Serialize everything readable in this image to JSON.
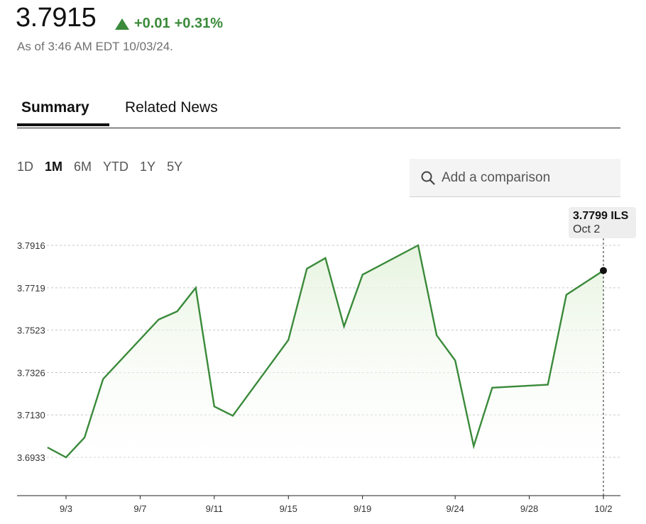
{
  "quote": {
    "price": "3.7915",
    "change": "+0.01",
    "change_pct": "+0.31%",
    "as_of": "As of 3:46 AM EDT 10/03/24."
  },
  "tabs": [
    {
      "label": "Summary",
      "active": true
    },
    {
      "label": "Related News",
      "active": false
    }
  ],
  "ranges": [
    {
      "label": "1D",
      "active": false
    },
    {
      "label": "1M",
      "active": true
    },
    {
      "label": "6M",
      "active": false
    },
    {
      "label": "YTD",
      "active": false
    },
    {
      "label": "1Y",
      "active": false
    },
    {
      "label": "5Y",
      "active": false
    }
  ],
  "comparison": {
    "placeholder": "Add a comparison",
    "icon": "search-icon"
  },
  "tooltip": {
    "value": "3.7799 ILS",
    "date": "Oct 2"
  },
  "colors": {
    "line": "#3a8a3a",
    "positive": "#3a8a3a",
    "fill": "#eef7ea"
  },
  "chart_data": {
    "type": "area",
    "ylim": [
      3.675,
      3.7964
    ],
    "y_ticks": [
      "3.7916",
      "3.7719",
      "3.7523",
      "3.7326",
      "3.7130",
      "3.6933"
    ],
    "x_tick_labels": [
      "9/3",
      "9/7",
      "9/11",
      "9/15",
      "9/19",
      "9/24",
      "9/28",
      "10/2"
    ],
    "grid": true,
    "series": [
      {
        "values": [
          {
            "x": "2024-09-02",
            "y": 3.6979
          },
          {
            "x": "2024-09-03",
            "y": 3.6933
          },
          {
            "x": "2024-09-04",
            "y": 3.7025
          },
          {
            "x": "2024-09-05",
            "y": 3.7296
          },
          {
            "x": "2024-09-08",
            "y": 3.7572
          },
          {
            "x": "2024-09-09",
            "y": 3.761
          },
          {
            "x": "2024-09-10",
            "y": 3.7719
          },
          {
            "x": "2024-09-11",
            "y": 3.7169
          },
          {
            "x": "2024-09-12",
            "y": 3.7126
          },
          {
            "x": "2024-09-15",
            "y": 3.7477
          },
          {
            "x": "2024-09-16",
            "y": 3.7808
          },
          {
            "x": "2024-09-17",
            "y": 3.7857
          },
          {
            "x": "2024-09-18",
            "y": 3.754
          },
          {
            "x": "2024-09-19",
            "y": 3.778
          },
          {
            "x": "2024-09-22",
            "y": 3.7916
          },
          {
            "x": "2024-09-23",
            "y": 3.7499
          },
          {
            "x": "2024-09-24",
            "y": 3.7382
          },
          {
            "x": "2024-09-25",
            "y": 3.6985
          },
          {
            "x": "2024-09-26",
            "y": 3.7256
          },
          {
            "x": "2024-09-29",
            "y": 3.727
          },
          {
            "x": "2024-09-30",
            "y": 3.7687
          },
          {
            "x": "2024-10-02",
            "y": 3.7799
          }
        ]
      }
    ]
  }
}
